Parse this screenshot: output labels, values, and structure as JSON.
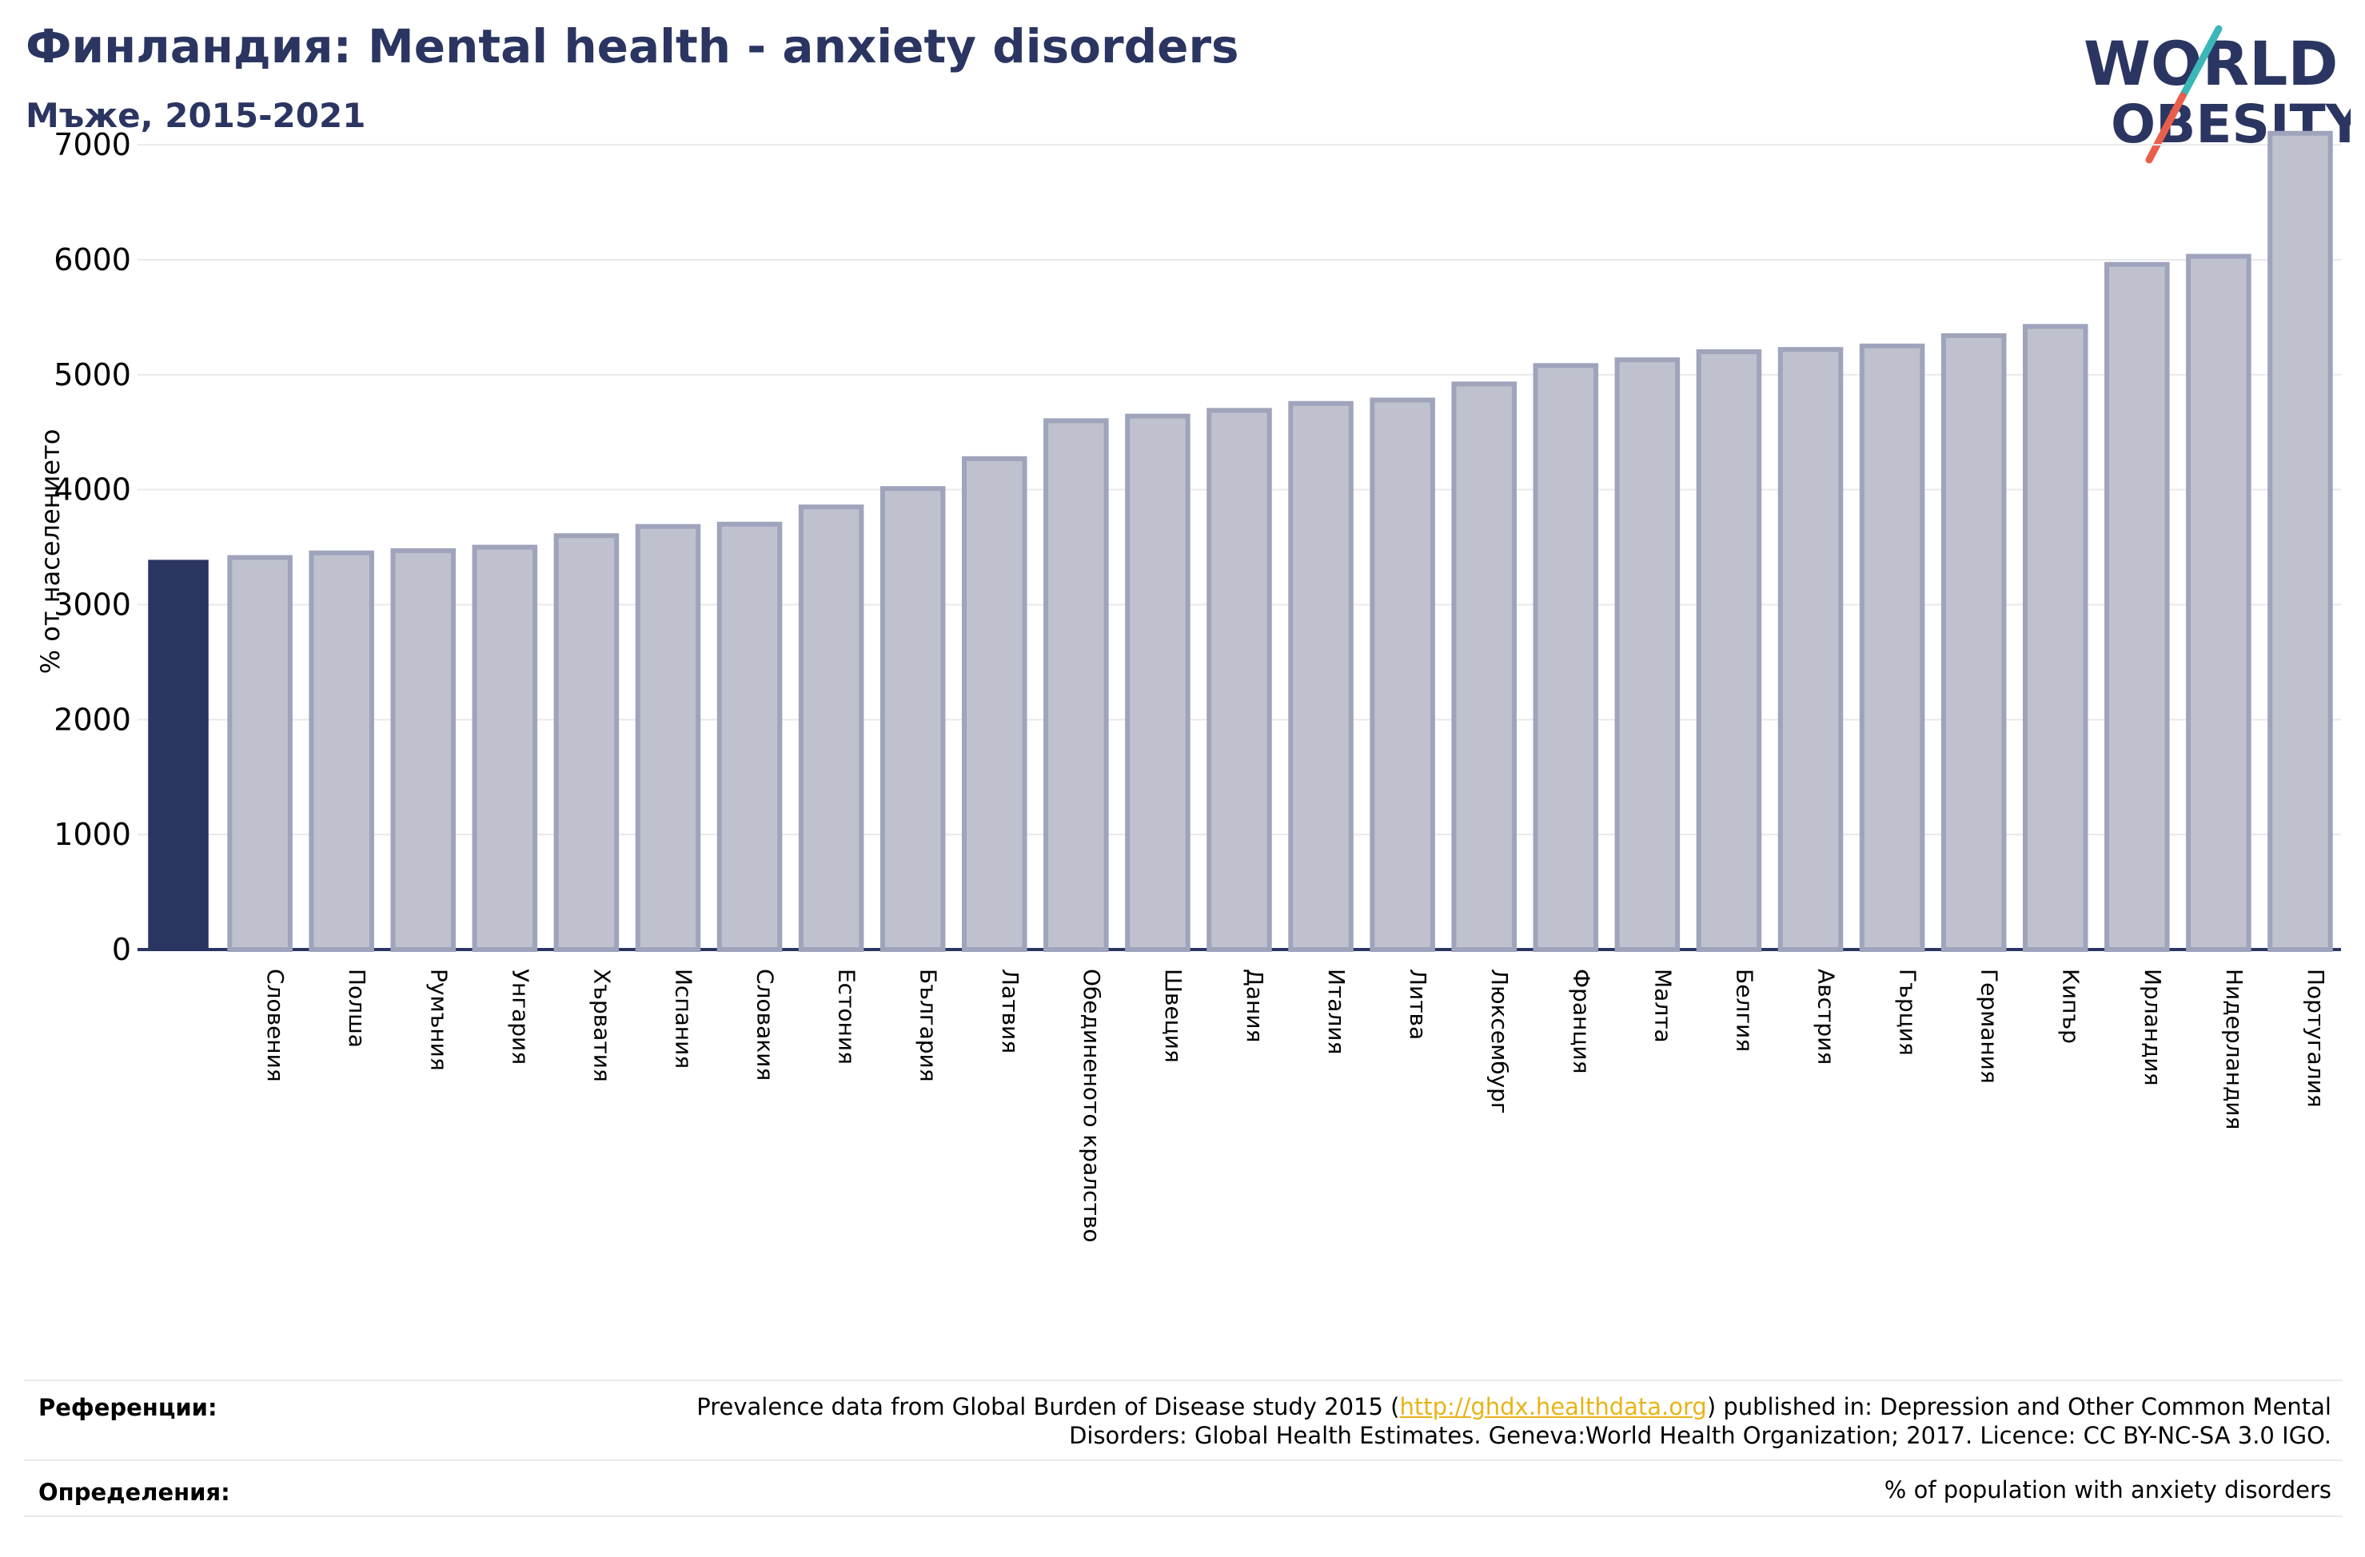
{
  "header": {
    "title": "Финландия: Mental health - anxiety disorders",
    "subtitle": "Мъже, 2015-2021"
  },
  "logo": {
    "line1": "WORLD",
    "line2": "OBESITY",
    "colors": {
      "text": "#2b3561",
      "slash_top": "#3bb7b8",
      "slash_bottom": "#e8604c"
    }
  },
  "colors": {
    "highlight_bar": "#2b3561",
    "bar_fill": "#bfc1ce",
    "bar_stroke": "#9fa3bb",
    "gridline": "#e9e9ec",
    "axis": "#2b3561",
    "link": "#e7b417"
  },
  "chart_data": {
    "type": "bar",
    "title": "",
    "xlabel": "",
    "ylabel": "% от населението",
    "ylim": [
      0,
      7300
    ],
    "yticks": [
      0,
      1000,
      2000,
      3000,
      4000,
      5000,
      6000,
      7000
    ],
    "grid": true,
    "highlight_index": 0,
    "categories": [
      "",
      "Словения",
      "Полша",
      "Румъния",
      "Унгария",
      "Хърватия",
      "Испания",
      "Словакия",
      "Естония",
      "България",
      "Латвия",
      "Обединеното кралство",
      "Швеция",
      "Дания",
      "Италия",
      "Литва",
      "Люксембург",
      "Франция",
      "Малта",
      "Белгия",
      "Австрия",
      "Гърция",
      "Германия",
      "Кипър",
      "Ирландия",
      "Нидерландия",
      "Португалия"
    ],
    "values": [
      3390,
      3410,
      3450,
      3470,
      3500,
      3600,
      3680,
      3700,
      3850,
      4010,
      4270,
      4600,
      4640,
      4690,
      4750,
      4780,
      4920,
      5080,
      5130,
      5200,
      5220,
      5250,
      5340,
      5420,
      5960,
      6030,
      7100
    ]
  },
  "references": {
    "label": "Референции:",
    "text_before": "Prevalence data from Global Burden of Disease study 2015 (",
    "link": "http://ghdx.healthdata.org",
    "text_after": ") published in: Depression and Other Common Mental",
    "line2": "Disorders: Global Health Estimates. Geneva:World Health Organization; 2017. Licence: CC BY-NC-SA 3.0 IGO."
  },
  "definitions": {
    "label": "Определения:",
    "text": "% of population with anxiety disorders"
  }
}
